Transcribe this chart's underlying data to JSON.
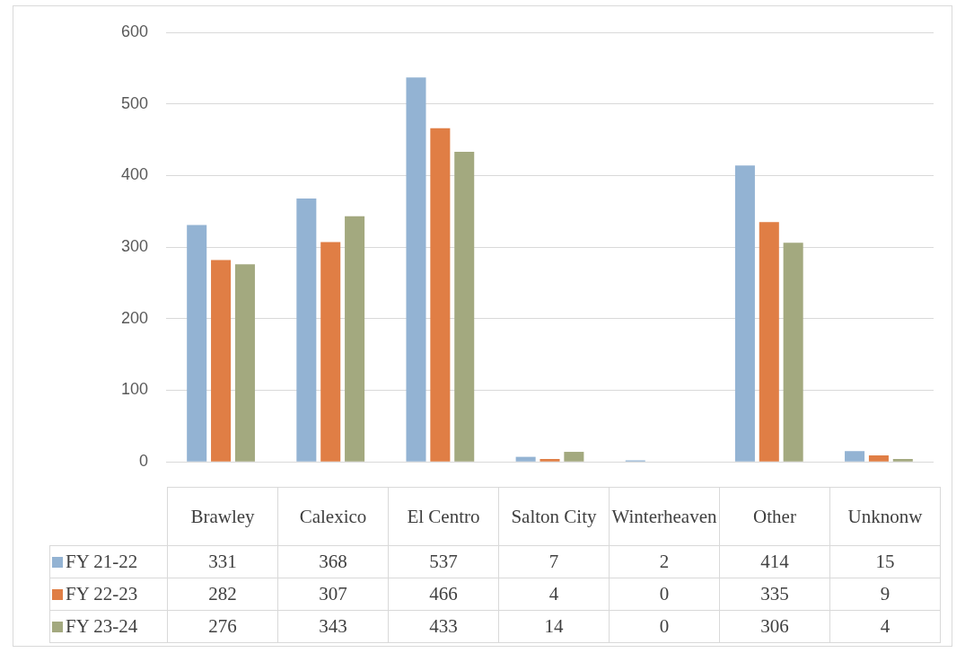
{
  "chart_data": {
    "type": "bar",
    "categories": [
      "Brawley",
      "Calexico",
      "El Centro",
      "Salton City",
      "Winterheaven",
      "Other",
      "Unknonw"
    ],
    "series": [
      {
        "name": "FY 21-22",
        "color": "#93b3d3",
        "values": [
          331,
          368,
          537,
          7,
          2,
          414,
          15
        ]
      },
      {
        "name": "FY 22-23",
        "color": "#e07e45",
        "values": [
          282,
          307,
          466,
          4,
          0,
          335,
          9
        ]
      },
      {
        "name": "FY 23-24",
        "color": "#a3a97f",
        "values": [
          276,
          343,
          433,
          14,
          0,
          306,
          4
        ]
      }
    ],
    "ylim": [
      0,
      600
    ],
    "yticks": [
      0,
      100,
      200,
      300,
      400,
      500,
      600
    ],
    "grid": "y",
    "legend": "bottom",
    "data_labels": true
  }
}
